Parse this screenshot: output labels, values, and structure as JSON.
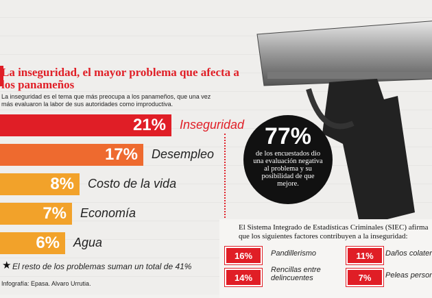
{
  "title": "La inseguridad, el mayor problema  que afecta a los panameños",
  "subtitle": "La inseguridad es el tema que más preocupa a los panameños, que una vez más evaluaron la labor de sus autoridades como improductiva.",
  "chart_data": {
    "type": "bar",
    "categories": [
      "Inseguridad",
      "Desempleo",
      "Costo de la vida",
      "Economía",
      "Agua"
    ],
    "values": [
      21,
      17,
      8,
      7,
      6
    ],
    "labels": [
      "21%",
      "17%",
      "8%",
      "7%",
      "6%"
    ],
    "colors": [
      "#e01e26",
      "#ee6a2f",
      "#f2a22a",
      "#f2a22a",
      "#f2a22a"
    ]
  },
  "highlight": {
    "value": "77%",
    "text": "de los encuestados dio una evaluación negativa al problema y su posibilidad de que mejore."
  },
  "note": "El resto de los problemas suman un total de 41%",
  "credit": "Infografía: Epasa. Alvaro Urrutia.",
  "siec": {
    "text": "El Sistema Integrado de Estadísticas Criminales (SIEC) afirma que los siguientes factores contribuyen a la inseguridad:",
    "factors": [
      {
        "value": "16%",
        "label": "Pandillerismo"
      },
      {
        "value": "11%",
        "label": "Daños colaterales"
      },
      {
        "value": "14%",
        "label": "Rencillas entre delincuentes"
      },
      {
        "value": "7%",
        "label": "Peleas personales"
      }
    ]
  }
}
